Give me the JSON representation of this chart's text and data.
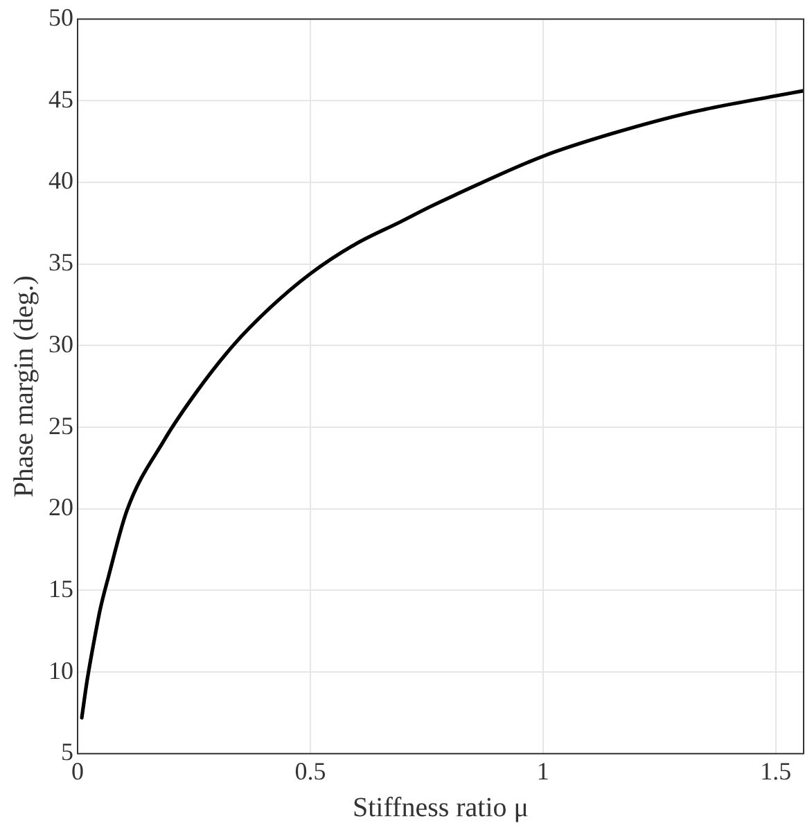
{
  "chart_data": {
    "type": "line",
    "xlabel": "Stiffness ratio μ",
    "ylabel": "Phase margin (deg.)",
    "x": [
      0.009,
      0.02,
      0.038,
      0.049,
      0.066,
      0.106,
      0.186,
      0.254,
      0.334,
      0.413,
      0.5,
      0.596,
      0.695,
      0.757,
      0.809,
      1,
      1.15,
      1.32,
      1.5,
      1.558
    ],
    "series": [
      {
        "color": "#000000",
        "values": [
          7.2,
          9.4,
          12.3,
          13.9,
          15.8,
          19.9,
          24.2,
          27.1,
          30,
          32.3,
          34.4,
          36.2,
          37.6,
          38.5,
          39.2,
          41.6,
          43,
          44.3,
          45.3,
          45.6
        ]
      }
    ],
    "xlim": [
      0,
      1.56
    ],
    "xticks": [
      0,
      0.5,
      1,
      1.5
    ],
    "ylim": [
      5,
      50
    ],
    "yticks": [
      5,
      10,
      15,
      20,
      25,
      30,
      35,
      40,
      45,
      50
    ],
    "grid": true,
    "legend": false,
    "marker": "none",
    "line_style": "solid"
  }
}
